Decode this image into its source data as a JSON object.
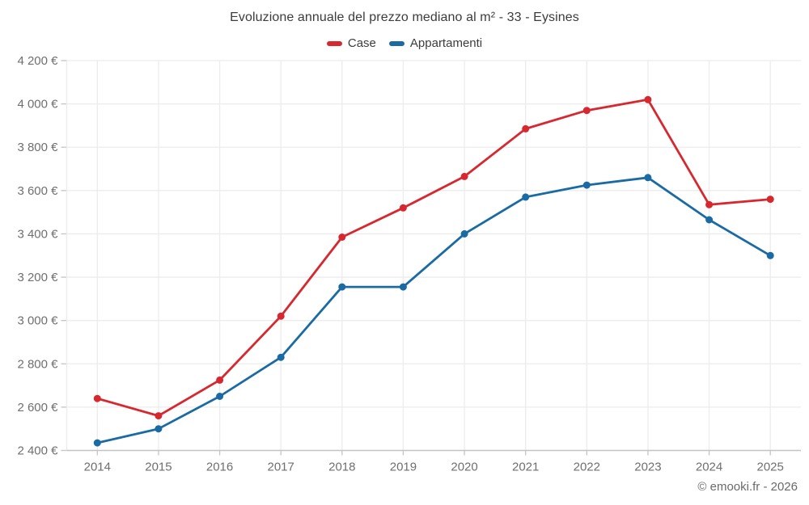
{
  "title": "Evoluzione annuale del prezzo mediano al m² - 33 - Eysines",
  "footer": "© emooki.fr - 2026",
  "colors": {
    "case_red": "#d7282f",
    "appartamenti_blue": "#1a6ba3",
    "grid": "#ececec",
    "axis": "#c4c4c4",
    "tick_text": "#6f6f6f",
    "title_text": "#3c3c3c"
  },
  "chart_data": {
    "type": "line",
    "title": "Evoluzione annuale del prezzo mediano al m² - 33 - Eysines",
    "x": [
      "2014",
      "2015",
      "2016",
      "2017",
      "2018",
      "2019",
      "2020",
      "2021",
      "2022",
      "2023",
      "2024",
      "2025"
    ],
    "series": [
      {
        "name": "Case",
        "color": "#d7282f",
        "values": [
          2640,
          2560,
          2725,
          3020,
          3385,
          3520,
          3665,
          3885,
          3970,
          4020,
          3535,
          3560
        ]
      },
      {
        "name": "Appartamenti",
        "color": "#1a6ba3",
        "values": [
          2435,
          2500,
          2650,
          2830,
          3155,
          3155,
          3400,
          3570,
          3625,
          3660,
          3465,
          3300
        ]
      }
    ],
    "ylim": [
      2400,
      4200
    ],
    "ytick_step": 200,
    "y_tick_labels": [
      "2 400 €",
      "2 600 €",
      "2 800 €",
      "3 000 €",
      "3 200 €",
      "3 400 €",
      "3 600 €",
      "3 800 €",
      "4 000 €",
      "4 200 €"
    ],
    "xlabel": "",
    "ylabel": "",
    "grid": true,
    "legend_position": "top"
  }
}
